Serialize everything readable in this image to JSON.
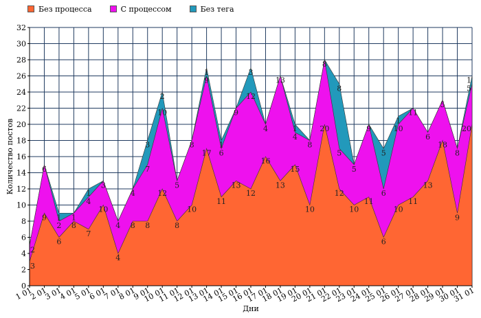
{
  "chart_data": {
    "type": "area",
    "stacked": true,
    "xlabel": "Дни",
    "ylabel": "Количество постов",
    "ylim": [
      0,
      32
    ],
    "yticks": [
      0,
      2,
      4,
      6,
      8,
      10,
      12,
      14,
      16,
      18,
      20,
      22,
      24,
      26,
      28,
      30,
      32
    ],
    "grid": true,
    "legend_position": "top-left",
    "categories": [
      "1 01",
      "2 01",
      "3 01",
      "4 01",
      "5 01",
      "6 01",
      "7 01",
      "8 01",
      "9 01",
      "10 01",
      "11 01",
      "12 01",
      "13 01",
      "14 01",
      "15 01",
      "16 01",
      "17 01",
      "18 01",
      "19 01",
      "20 01",
      "21 01",
      "22 01",
      "23 01",
      "24 01",
      "25 01",
      "26 01",
      "27 01",
      "28 01",
      "29 01",
      "30 01",
      "31 01"
    ],
    "series": [
      {
        "name": "Без процесса",
        "color": "#ff6633",
        "values": [
          3,
          9,
          6,
          8,
          7,
          10,
          4,
          8,
          8,
          12,
          8,
          10,
          17,
          11,
          13,
          12,
          16,
          13,
          15,
          10,
          20,
          12,
          10,
          11,
          6,
          10,
          11,
          13,
          18,
          9,
          20
        ]
      },
      {
        "name": "С процессом",
        "color": "#ee11ee",
        "values": [
          2,
          6,
          2,
          1,
          4,
          3,
          4,
          4,
          7,
          10,
          5,
          8,
          9,
          6,
          9,
          12,
          4,
          13,
          4,
          8,
          8,
          5,
          5,
          9,
          6,
          10,
          11,
          6,
          5,
          8,
          5
        ]
      },
      {
        "name": "Без тега",
        "color": "#2299bb",
        "values": [
          0,
          0,
          1,
          0,
          1,
          0,
          0,
          0,
          3,
          2,
          0,
          0,
          1,
          1,
          0,
          3,
          0,
          0,
          1,
          0,
          0,
          8,
          0,
          0,
          5,
          1,
          0,
          0,
          0,
          0,
          1
        ]
      }
    ]
  }
}
